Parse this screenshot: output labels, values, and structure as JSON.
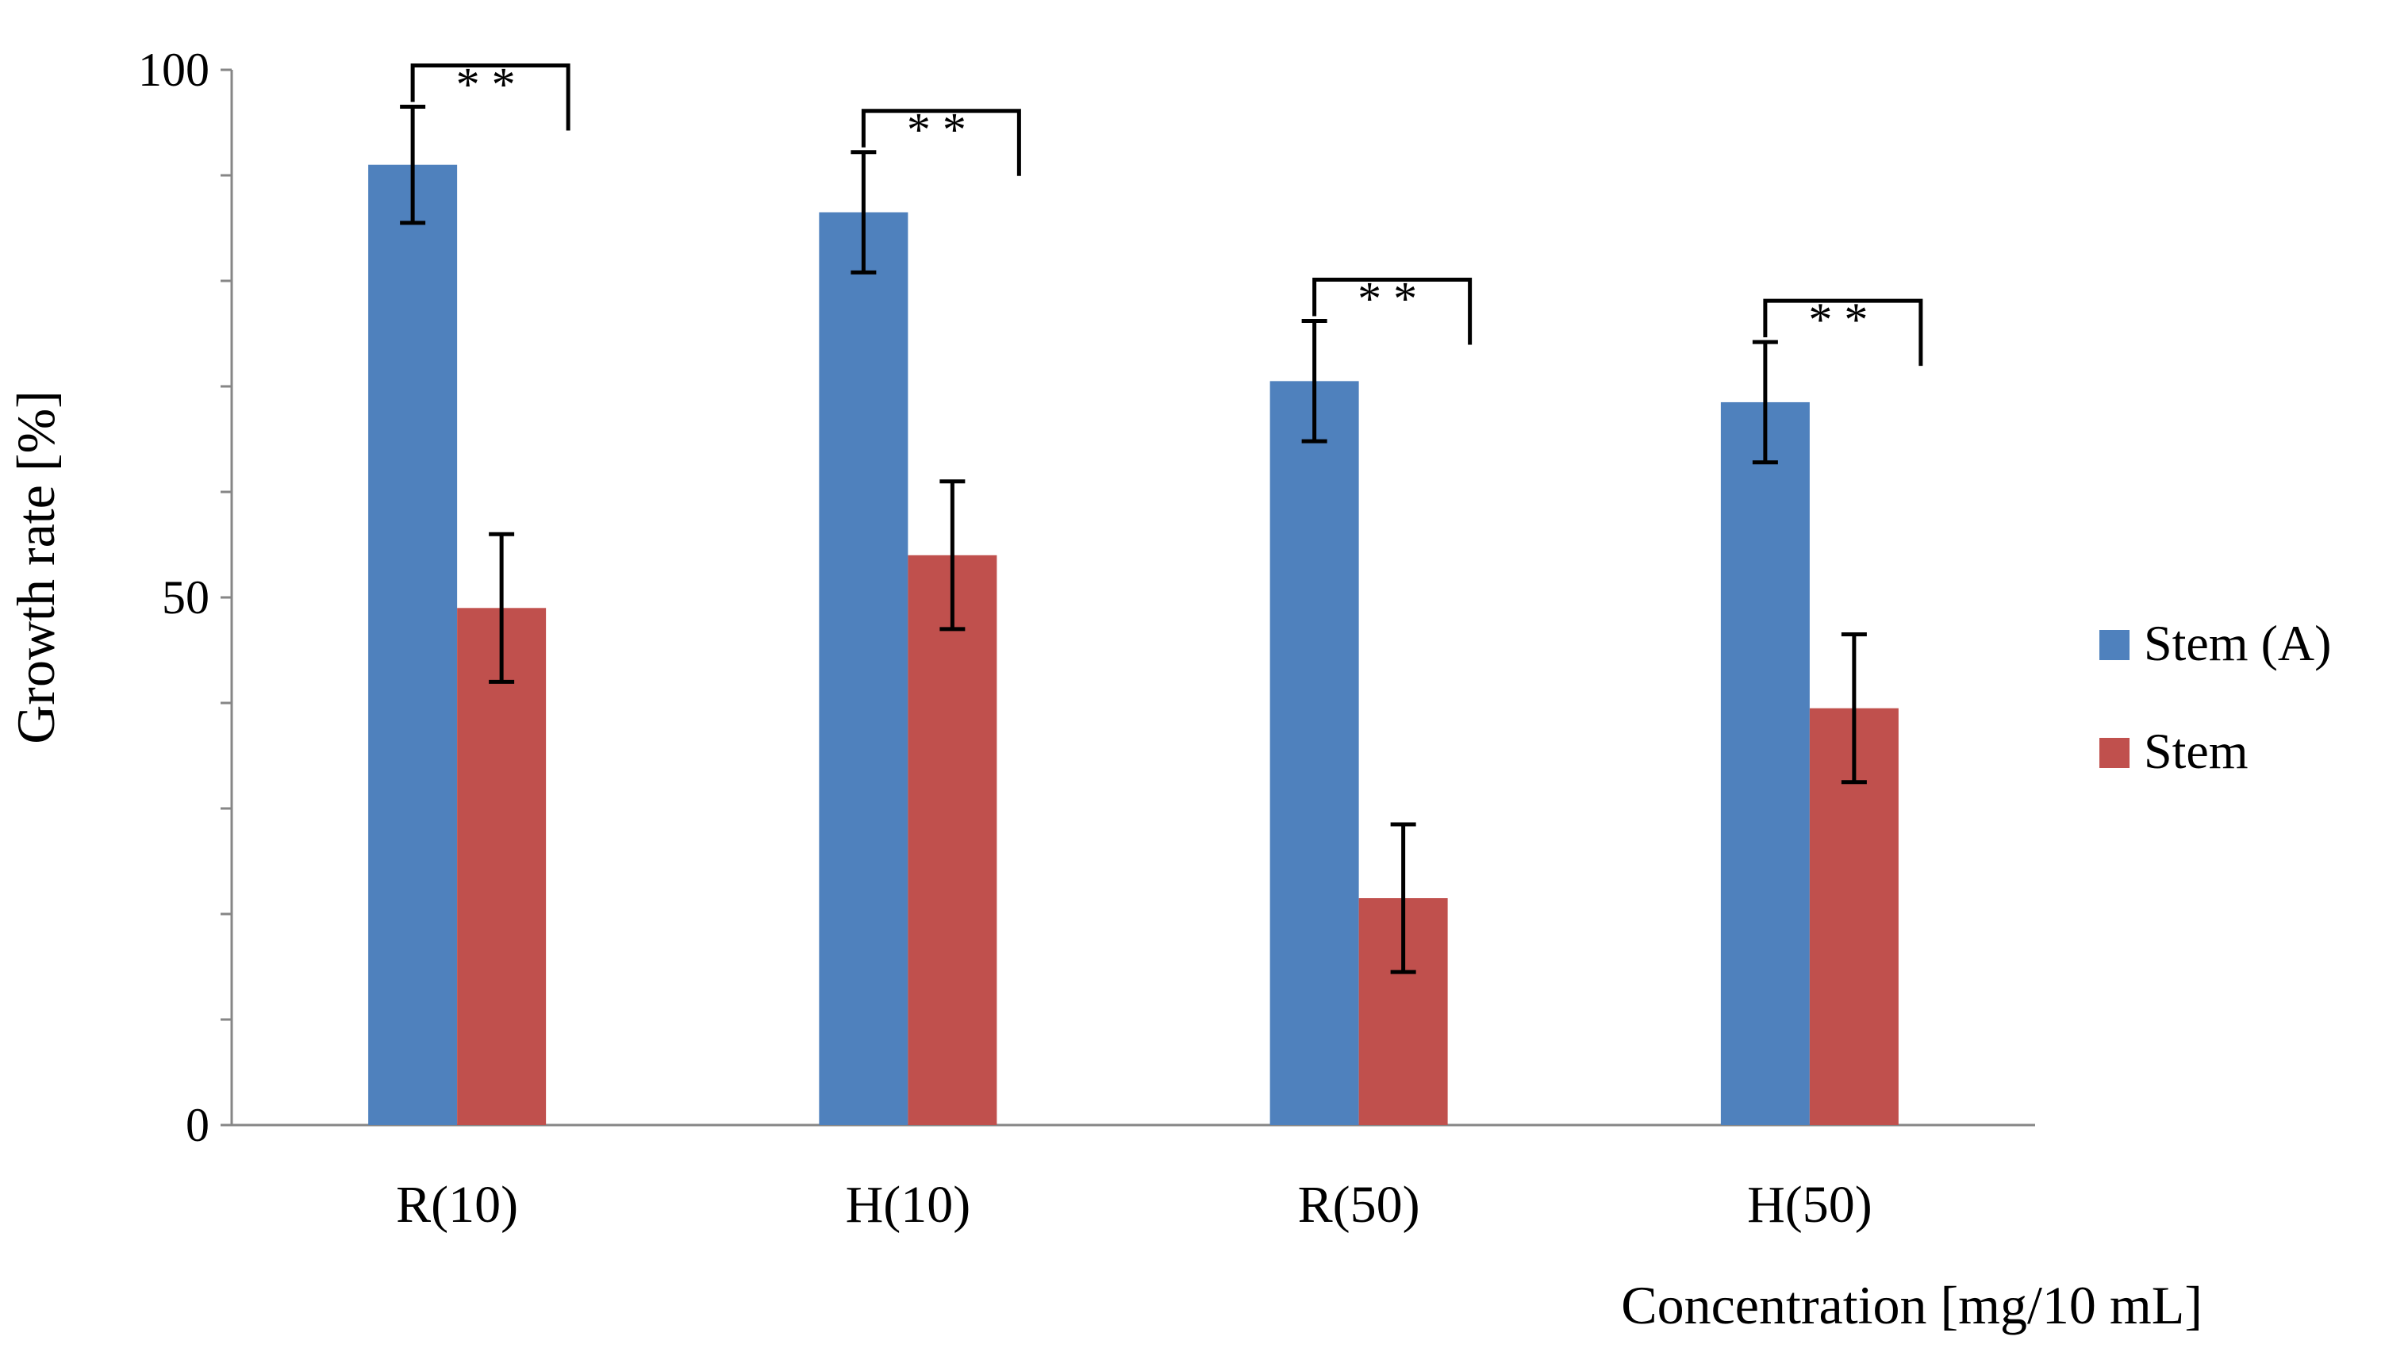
{
  "chart_data": {
    "type": "bar",
    "title": "",
    "xlabel": "Concentration [mg/10 mL]",
    "ylabel": "Growth rate [%]",
    "ylim": [
      0,
      100
    ],
    "yticks": [
      0,
      50,
      100
    ],
    "grid": false,
    "legend_position": "right",
    "categories": [
      "R(10)",
      "H(10)",
      "R(50)",
      "H(50)"
    ],
    "series": [
      {
        "name": "Stem (A)",
        "color": "#4F81BD",
        "values": [
          91,
          86.5,
          70.5,
          68.5
        ],
        "errors": [
          5.5,
          5.7,
          5.7,
          5.7
        ]
      },
      {
        "name": "Stem",
        "color": "#C0504D",
        "values": [
          49,
          54,
          21.5,
          39.5
        ],
        "errors": [
          7,
          7,
          7,
          7
        ]
      }
    ],
    "annotations": [
      {
        "category": "R(10)",
        "text": "* *"
      },
      {
        "category": "H(10)",
        "text": "* *"
      },
      {
        "category": "R(50)",
        "text": "* *"
      },
      {
        "category": "H(50)",
        "text": "* *"
      }
    ]
  }
}
